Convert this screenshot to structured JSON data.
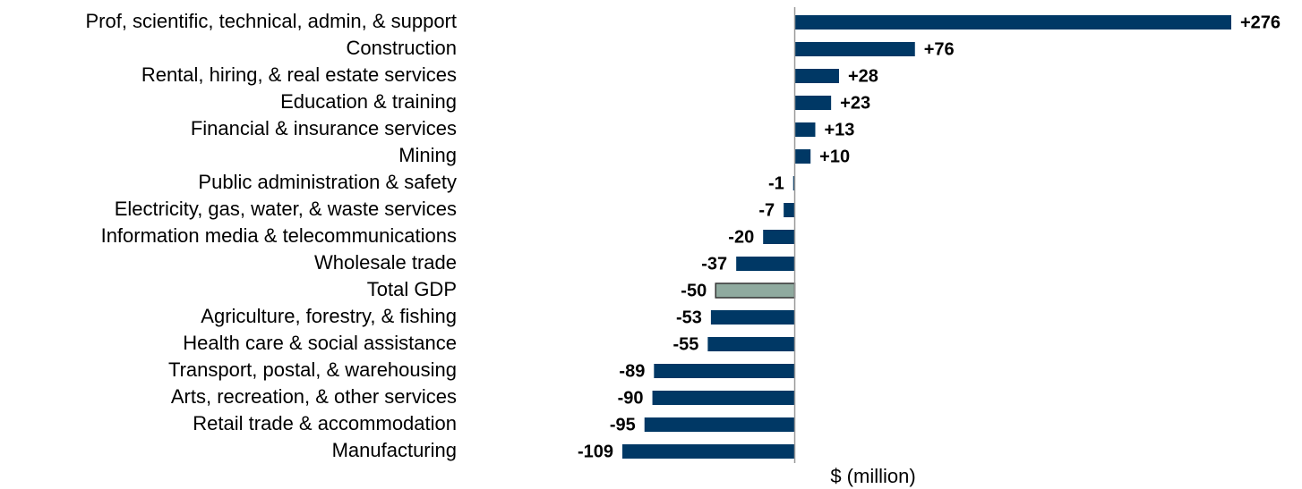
{
  "chart_data": {
    "type": "hbar",
    "x_label": "$ (million)",
    "categories": [
      "Prof, scientific, technical, admin, & support",
      "Construction",
      "Rental, hiring, & real estate services",
      "Education & training",
      "Financial & insurance services",
      "Mining",
      "Public administration & safety",
      "Electricity, gas, water, & waste services",
      "Information media & telecommunications",
      "Wholesale trade",
      "Total GDP",
      "Agriculture, forestry, & fishing",
      "Health care & social assistance",
      "Transport, postal, & warehousing",
      "Arts, recreation, & other services",
      "Retail trade & accommodation",
      "Manufacturing"
    ],
    "values": [
      276,
      76,
      28,
      23,
      13,
      10,
      -1,
      -7,
      -20,
      -37,
      -50,
      -53,
      -55,
      -89,
      -90,
      -95,
      -109
    ],
    "value_labels": [
      "+276",
      "+76",
      "+28",
      "+23",
      "+13",
      "+10",
      "-1",
      "-7",
      "-20",
      "-37",
      "-50",
      "-53",
      "-55",
      "-89",
      "-90",
      "-95",
      "-109"
    ],
    "colors": [
      "#003865",
      "#003865",
      "#003865",
      "#003865",
      "#003865",
      "#003865",
      "#003865",
      "#003865",
      "#003865",
      "#003865",
      "#8faa9f",
      "#003865",
      "#003865",
      "#003865",
      "#003865",
      "#003865",
      "#003865"
    ],
    "xlim": [
      -109,
      276
    ]
  }
}
